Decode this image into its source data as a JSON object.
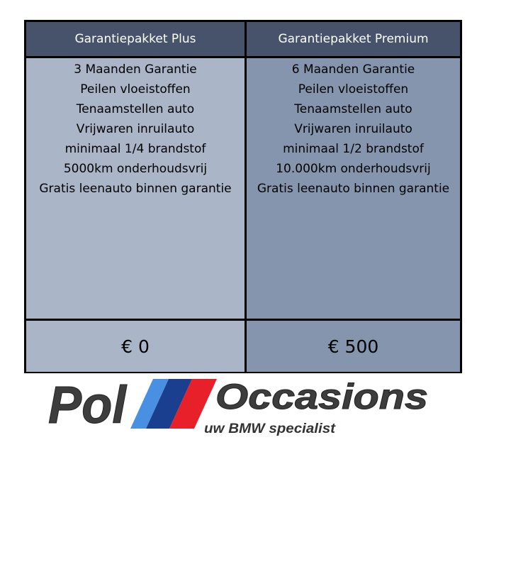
{
  "columns": [
    {
      "title": "Garantiepakket Plus",
      "features": [
        "3 Maanden Garantie",
        "Peilen vloeistoffen",
        "Tenaamstellen auto",
        "Vrijwaren inruilauto",
        "minimaal 1/4 brandstof",
        "5000km onderhoudsvrij",
        "Gratis leenauto binnen garantie"
      ],
      "price": "€ 0"
    },
    {
      "title": "Garantiepakket Premium",
      "features": [
        "6 Maanden Garantie",
        "Peilen vloeistoffen",
        "Tenaamstellen auto",
        "Vrijwaren inruilauto",
        "minimaal 1/2 brandstof",
        "10.000km onderhoudsvrij",
        "Gratis leenauto binnen garantie"
      ],
      "price": "€ 500"
    }
  ],
  "logo": {
    "left": "Pol",
    "right": "Occasions",
    "tagline": "uw BMW specialist"
  },
  "colors": {
    "header": "#46536b",
    "plus_body": "#aab5c8",
    "premium_body": "#8595ae",
    "stripe_light_blue": "#4a90e2",
    "stripe_dark_blue": "#1b3f8f",
    "stripe_red": "#e8202a"
  }
}
